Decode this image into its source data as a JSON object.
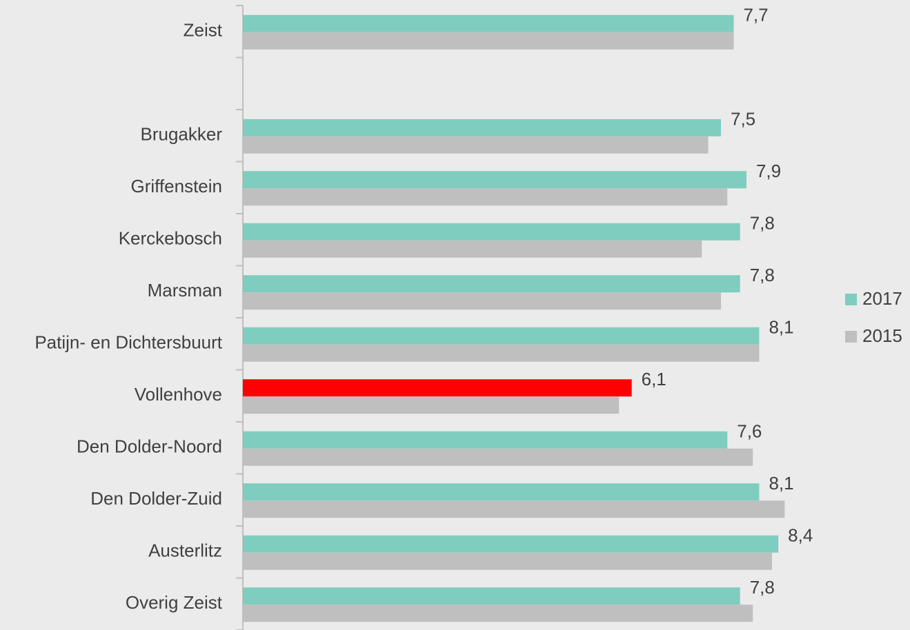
{
  "chart_data": {
    "type": "hbar",
    "categories": [
      "Zeist",
      null,
      "Brugakker",
      "Griffenstein",
      "Kerckebosch",
      "Marsman",
      "Patijn- en Dichtersbuurt",
      "Vollenhove",
      "Den Dolder-Noord",
      "Den Dolder-Zuid",
      "Austerlitz",
      "Overig Zeist"
    ],
    "series": [
      {
        "name": "2017",
        "color": "#7fcdbe",
        "colors": [
          "#7fcdbe",
          null,
          "#7fcdbe",
          "#7fcdbe",
          "#7fcdbe",
          "#7fcdbe",
          "#7fcdbe",
          "#ff0000",
          "#7fcdbe",
          "#7fcdbe",
          "#7fcdbe",
          "#7fcdbe"
        ],
        "values": [
          7.7,
          null,
          7.5,
          7.9,
          7.8,
          7.8,
          8.1,
          6.1,
          7.6,
          8.1,
          8.4,
          7.8
        ],
        "value_labels": [
          "7,7",
          null,
          "7,5",
          "7,9",
          "7,8",
          "7,8",
          "8,1",
          "6,1",
          "7,6",
          "8,1",
          "8,4",
          "7,8"
        ]
      },
      {
        "name": "2015",
        "color": "#bfbfbf",
        "values": [
          7.7,
          null,
          7.3,
          7.6,
          7.2,
          7.5,
          8.1,
          5.9,
          8.0,
          8.5,
          8.3,
          8.0
        ]
      }
    ],
    "xlim": [
      0,
      10
    ],
    "legend": "right"
  }
}
